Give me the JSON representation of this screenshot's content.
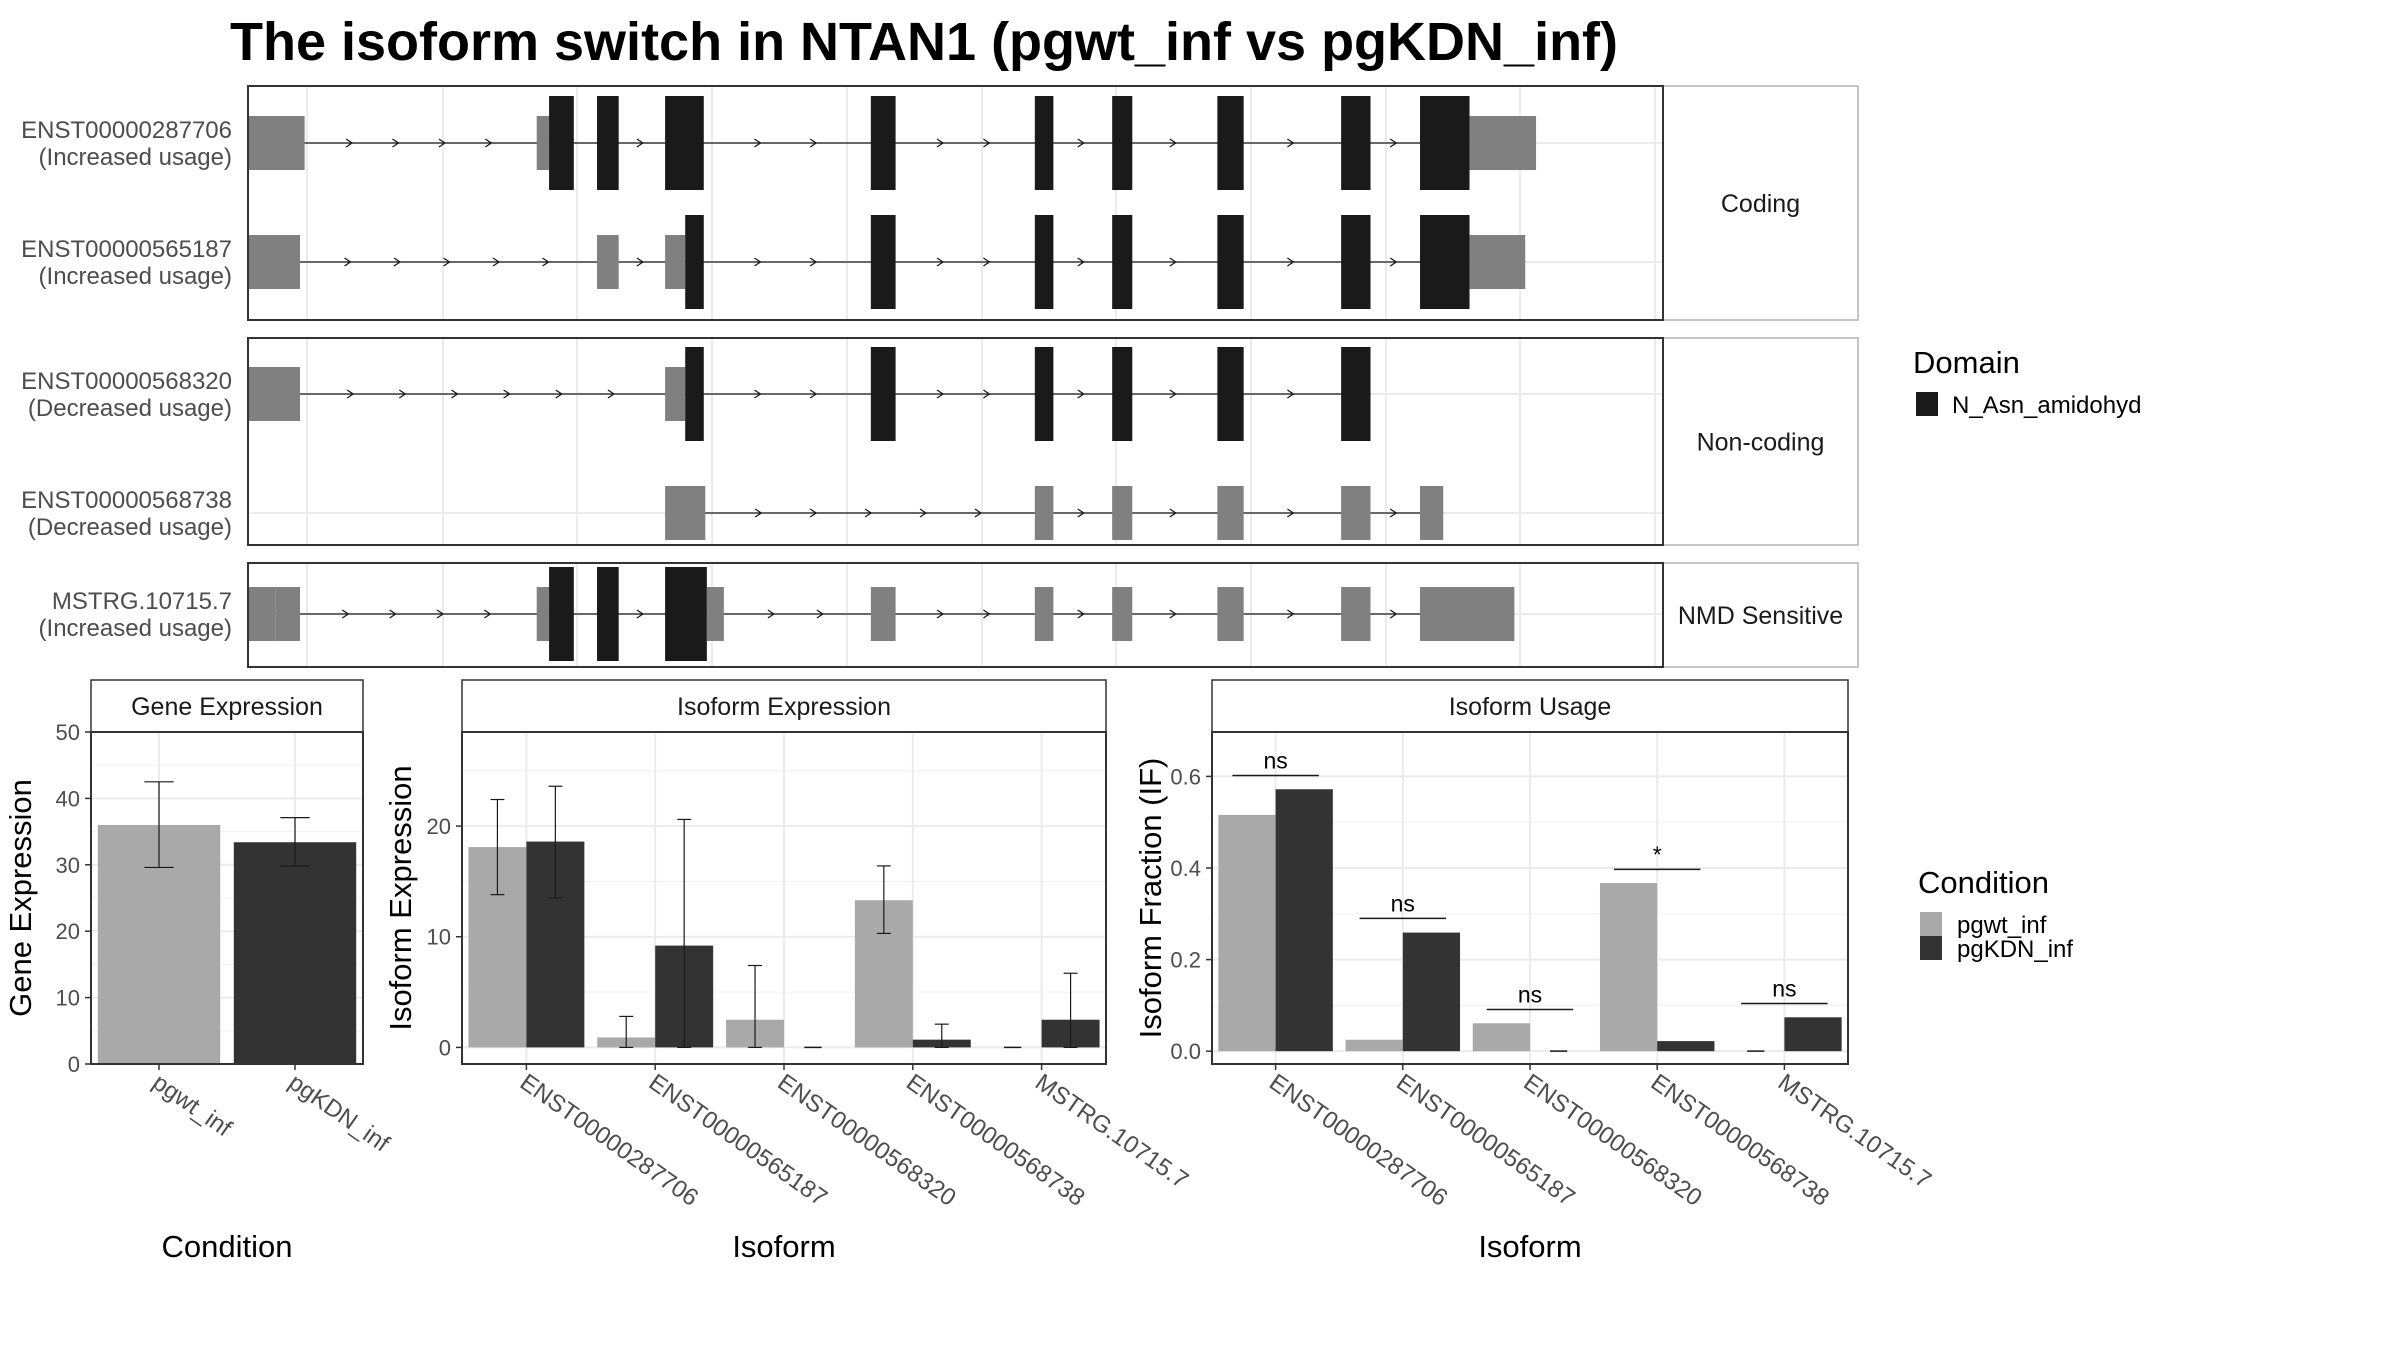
{
  "title": "The isoform switch in NTAN1 (pgwt_inf vs pgKDN_inf)",
  "colors": {
    "utr": "#808080",
    "domain": "#1a1a1a",
    "pgwt_inf": "#a9a9a9",
    "pgKDN_inf": "#333333"
  },
  "transcript_plot": {
    "groups": [
      {
        "label": "Coding",
        "transcripts": [
          {
            "id": "ENST00000287706",
            "usage": "(Increased usage)",
            "exons": [
              {
                "s": 200,
                "e": 237,
                "k": "u"
              },
              {
                "s": 387,
                "e": 395,
                "k": "u"
              },
              {
                "s": 395,
                "e": 411,
                "k": "d"
              },
              {
                "s": 426,
                "e": 440,
                "k": "d"
              },
              {
                "s": 470,
                "e": 495,
                "k": "d"
              },
              {
                "s": 603,
                "e": 619,
                "k": "d"
              },
              {
                "s": 709,
                "e": 721,
                "k": "d"
              },
              {
                "s": 759,
                "e": 772,
                "k": "d"
              },
              {
                "s": 827,
                "e": 844,
                "k": "d"
              },
              {
                "s": 907,
                "e": 926,
                "k": "d"
              },
              {
                "s": 958,
                "e": 990,
                "k": "d"
              },
              {
                "s": 990,
                "e": 1033,
                "k": "u"
              }
            ]
          },
          {
            "id": "ENST00000565187",
            "usage": "(Increased usage)",
            "exons": [
              {
                "s": 200,
                "e": 234,
                "k": "u"
              },
              {
                "s": 426,
                "e": 440,
                "k": "u"
              },
              {
                "s": 470,
                "e": 483,
                "k": "u"
              },
              {
                "s": 483,
                "e": 495,
                "k": "d"
              },
              {
                "s": 603,
                "e": 619,
                "k": "d"
              },
              {
                "s": 709,
                "e": 721,
                "k": "d"
              },
              {
                "s": 759,
                "e": 772,
                "k": "d"
              },
              {
                "s": 827,
                "e": 844,
                "k": "d"
              },
              {
                "s": 907,
                "e": 926,
                "k": "d"
              },
              {
                "s": 958,
                "e": 990,
                "k": "d"
              },
              {
                "s": 990,
                "e": 1026,
                "k": "u"
              }
            ]
          }
        ]
      },
      {
        "label": "Non-coding",
        "transcripts": [
          {
            "id": "ENST00000568320",
            "usage": "(Decreased usage)",
            "exons": [
              {
                "s": 200,
                "e": 234,
                "k": "u"
              },
              {
                "s": 470,
                "e": 483,
                "k": "u"
              },
              {
                "s": 483,
                "e": 495,
                "k": "d"
              },
              {
                "s": 603,
                "e": 619,
                "k": "d"
              },
              {
                "s": 709,
                "e": 721,
                "k": "d"
              },
              {
                "s": 759,
                "e": 772,
                "k": "d"
              },
              {
                "s": 827,
                "e": 844,
                "k": "d"
              },
              {
                "s": 907,
                "e": 926,
                "k": "d"
              }
            ]
          },
          {
            "id": "ENST00000568738",
            "usage": "(Decreased usage)",
            "exons": [
              {
                "s": 470,
                "e": 496,
                "k": "u"
              },
              {
                "s": 709,
                "e": 721,
                "k": "u"
              },
              {
                "s": 759,
                "e": 772,
                "k": "u"
              },
              {
                "s": 827,
                "e": 844,
                "k": "u"
              },
              {
                "s": 907,
                "e": 926,
                "k": "u"
              },
              {
                "s": 958,
                "e": 973,
                "k": "u"
              }
            ]
          }
        ]
      },
      {
        "label": "NMD Sensitive",
        "transcripts": [
          {
            "id": "MSTRG.10715.7",
            "usage": "(Increased usage)",
            "exons": [
              {
                "s": 200,
                "e": 218,
                "k": "u"
              },
              {
                "s": 218,
                "e": 234,
                "k": "u"
              },
              {
                "s": 387,
                "e": 395,
                "k": "u"
              },
              {
                "s": 395,
                "e": 411,
                "k": "d"
              },
              {
                "s": 426,
                "e": 440,
                "k": "d"
              },
              {
                "s": 470,
                "e": 497,
                "k": "d"
              },
              {
                "s": 497,
                "e": 508,
                "k": "u"
              },
              {
                "s": 603,
                "e": 619,
                "k": "u"
              },
              {
                "s": 709,
                "e": 721,
                "k": "u"
              },
              {
                "s": 759,
                "e": 772,
                "k": "u"
              },
              {
                "s": 827,
                "e": 844,
                "k": "u"
              },
              {
                "s": 907,
                "e": 926,
                "k": "u"
              },
              {
                "s": 958,
                "e": 1019,
                "k": "u"
              }
            ]
          }
        ]
      }
    ],
    "domain_legend": {
      "title": "Domain",
      "entries": [
        "N_Asn_amidohyd"
      ]
    }
  },
  "chart_data": [
    {
      "type": "bar",
      "title": "Gene Expression",
      "xlabel": "Condition",
      "ylabel": "Gene Expression",
      "categories": [
        "pgwt_inf",
        "pgKDN_inf"
      ],
      "values": [
        36.0,
        33.4
      ],
      "err_low": [
        29.6,
        29.8
      ],
      "err_high": [
        42.5,
        37.1
      ],
      "ylim": [
        0,
        50
      ],
      "yticks": [
        0,
        10,
        20,
        30,
        40,
        50
      ]
    },
    {
      "type": "bar",
      "title": "Isoform Expression",
      "xlabel": "Isoform",
      "ylabel": "Isoform Expression",
      "categories": [
        "ENST00000287706",
        "ENST00000565187",
        "ENST00000568320",
        "ENST00000568738",
        "MSTRG.10715.7"
      ],
      "series": [
        {
          "name": "pgwt_inf",
          "values": [
            18.1,
            0.9,
            2.5,
            13.3,
            0.0
          ],
          "err_low": [
            13.8,
            0.0,
            0.0,
            10.3,
            0.0
          ],
          "err_high": [
            22.4,
            2.8,
            7.4,
            16.4,
            0.0
          ]
        },
        {
          "name": "pgKDN_inf",
          "values": [
            18.6,
            9.2,
            0.0,
            0.7,
            2.5
          ],
          "err_low": [
            13.5,
            0.0,
            0.0,
            0.0,
            0.0
          ],
          "err_high": [
            23.6,
            20.6,
            0.0,
            2.1,
            6.7
          ]
        }
      ],
      "ylim": [
        -1.5,
        28.5
      ],
      "yticks": [
        0,
        10,
        20
      ]
    },
    {
      "type": "bar",
      "title": "Isoform Usage",
      "xlabel": "Isoform",
      "ylabel": "Isoform Fraction (IF)",
      "categories": [
        "ENST00000287706",
        "ENST00000565187",
        "ENST00000568320",
        "ENST00000568738",
        "MSTRG.10715.7"
      ],
      "series": [
        {
          "name": "pgwt_inf",
          "values": [
            0.516,
            0.025,
            0.061,
            0.367,
            0.0
          ]
        },
        {
          "name": "pgKDN_inf",
          "values": [
            0.572,
            0.259,
            0.0,
            0.022,
            0.074
          ]
        }
      ],
      "significance": [
        "ns",
        "ns",
        "ns",
        "*",
        "ns"
      ],
      "sig_y": [
        0.602,
        0.29,
        0.091,
        0.397,
        0.104
      ],
      "ylim": [
        -0.028,
        0.697
      ],
      "yticks": [
        0.0,
        0.2,
        0.4,
        0.6
      ],
      "ytick_labels": [
        "0.0",
        "0.2",
        "0.4",
        "0.6"
      ]
    }
  ],
  "condition_legend": {
    "title": "Condition",
    "entries": [
      "pgwt_inf",
      "pgKDN_inf"
    ]
  }
}
